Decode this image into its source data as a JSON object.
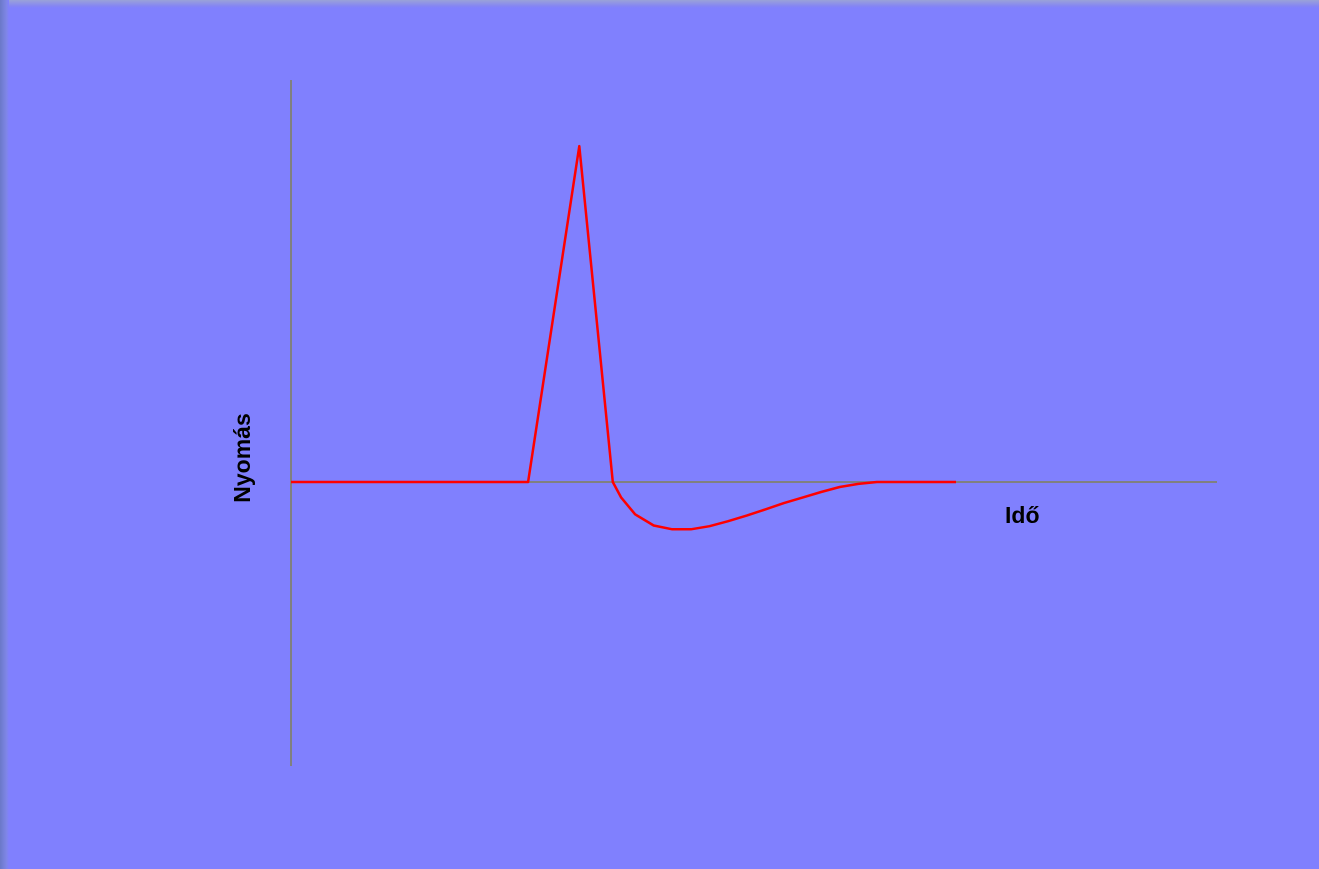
{
  "chart_data": {
    "type": "line",
    "title": "",
    "xlabel": "Idő",
    "ylabel": "Nyomás",
    "grid": false,
    "legend": "none",
    "xlim": [
      0,
      100
    ],
    "ylim": [
      -100,
      60
    ],
    "series": [
      {
        "color": "#ff0000",
        "x": [
          0,
          25.5,
          31,
          34.6,
          35.5,
          37,
          39,
          41,
          43,
          45,
          47,
          49,
          51,
          53,
          55,
          57,
          59,
          61,
          63,
          65,
          67,
          69,
          70.5,
          71.5
        ],
        "y": [
          0,
          0,
          54,
          0,
          -2.5,
          -5.2,
          -7,
          -7.6,
          -7.6,
          -7.1,
          -6.3,
          -5.4,
          -4.4,
          -3.4,
          -2.5,
          -1.6,
          -0.8,
          -0.3,
          0,
          0,
          0,
          0,
          0,
          0
        ]
      }
    ],
    "colors": {
      "background": "#8080fe",
      "axis": "#808080",
      "line": "#ff0000"
    }
  }
}
